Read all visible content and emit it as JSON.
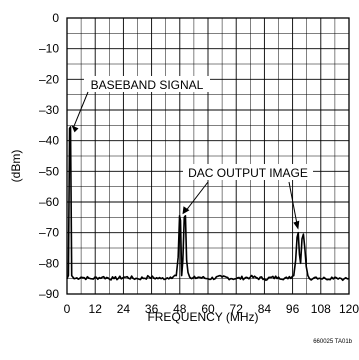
{
  "chart_data": {
    "type": "line",
    "title": "",
    "xlabel": "FREQUENCY (MHz)",
    "ylabel": "(dBm)",
    "xlim": [
      0,
      120
    ],
    "ylim": [
      -90,
      0
    ],
    "x_ticks": [
      0,
      12,
      24,
      36,
      48,
      60,
      72,
      84,
      96,
      108,
      120
    ],
    "x_tick_labels": [
      "0",
      "12",
      "24",
      "36",
      "48",
      "60",
      "72",
      "84",
      "96",
      "108",
      "120"
    ],
    "y_ticks": [
      0,
      -10,
      -20,
      -30,
      -40,
      -50,
      -60,
      -70,
      -80,
      -90
    ],
    "y_tick_labels": [
      "0",
      "–10",
      "–20",
      "–30",
      "–40",
      "–50",
      "–60",
      "–70",
      "–80",
      "–90"
    ],
    "grid": true,
    "series": [
      {
        "x": [
          0,
          0.6,
          1.1,
          1.5,
          2.0,
          2.5,
          3.0,
          6,
          10,
          15,
          20,
          25,
          30,
          35,
          40,
          44,
          46.5,
          47.3,
          47.9,
          48.3,
          48.8,
          49.3,
          49.9,
          50.4,
          50.9,
          51.5,
          52.2,
          53,
          56,
          60,
          66,
          72,
          78,
          84,
          90,
          94,
          96.5,
          97.3,
          97.9,
          98.4,
          98.9,
          99.4,
          100.0,
          100.6,
          101.2,
          101.8,
          102.5,
          103.2,
          106,
          110,
          114,
          118,
          120
        ],
        "y": [
          -85,
          -84,
          -36,
          -35.5,
          -84,
          -84.5,
          -85,
          -84.5,
          -85,
          -84.5,
          -85,
          -84.5,
          -85,
          -84.5,
          -85,
          -84.5,
          -84,
          -78,
          -64.5,
          -66,
          -84,
          -79,
          -65,
          -64.5,
          -79,
          -83,
          -84.5,
          -85,
          -84.5,
          -85,
          -84.5,
          -85,
          -84.5,
          -85,
          -84.5,
          -85,
          -84,
          -79,
          -71.5,
          -70,
          -77,
          -80,
          -72,
          -70.5,
          -75,
          -81,
          -84,
          -85,
          -84.5,
          -85,
          -84.5,
          -85,
          -85
        ]
      }
    ],
    "annotations": [
      {
        "text": "BASEBAND SIGNAL",
        "x": 1.5,
        "y": -35
      },
      {
        "text": "DAC OUTPUT IMAGE",
        "x": [
          48.3,
          98.0
        ],
        "y": [
          -64,
          -69
        ]
      }
    ]
  },
  "figure_id": "660025 TA01b"
}
